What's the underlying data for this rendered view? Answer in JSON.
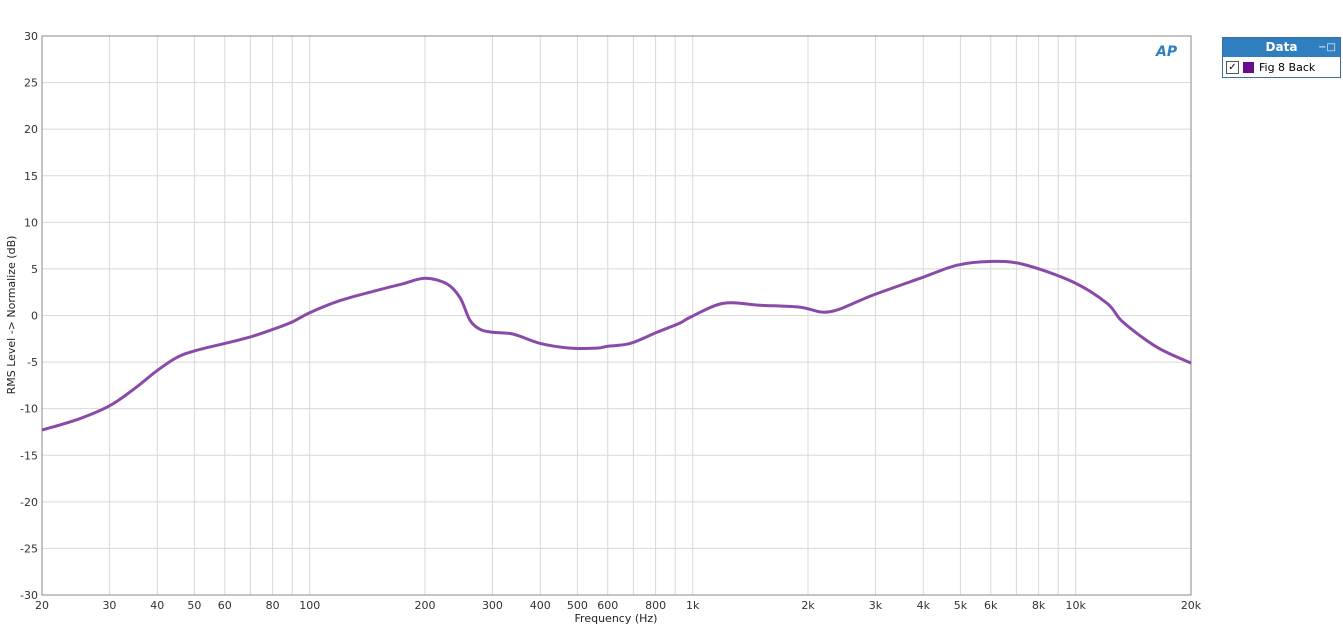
{
  "chart_data": {
    "type": "line",
    "title": "",
    "xlabel": "Frequency (Hz)",
    "ylabel": "RMS Level -> Normalize (dB)",
    "xscale": "log",
    "xlim": [
      20,
      20000
    ],
    "ylim": [
      -30,
      30
    ],
    "grid": true,
    "x_ticks": [
      20,
      30,
      40,
      50,
      60,
      80,
      100,
      200,
      300,
      400,
      500,
      600,
      800,
      1000,
      2000,
      3000,
      4000,
      5000,
      6000,
      8000,
      10000,
      20000
    ],
    "x_tick_labels": [
      "20",
      "30",
      "40",
      "50",
      "60",
      "80",
      "100",
      "200",
      "300",
      "400",
      "500",
      "600",
      "800",
      "1k",
      "2k",
      "3k",
      "4k",
      "5k",
      "6k",
      "8k",
      "10k",
      "20k"
    ],
    "y_ticks": [
      -30,
      -25,
      -20,
      -15,
      -10,
      -5,
      0,
      5,
      10,
      15,
      20,
      25,
      30
    ],
    "legend_placement": "right",
    "series": [
      {
        "name": "Fig 8 Back",
        "color": "#8a4aa8",
        "x": [
          20,
          25,
          30,
          35,
          40,
          45,
          50,
          60,
          70,
          80,
          90,
          100,
          120,
          150,
          175,
          200,
          228,
          247,
          262,
          279,
          300,
          340,
          400,
          478,
          562,
          600,
          686,
          807,
          927,
          984,
          1200,
          1500,
          1900,
          2280,
          2960,
          3990,
          4900,
          5970,
          7280,
          9840,
          12080,
          13280,
          16300,
          20000
        ],
        "y": [
          -12.3,
          -11.1,
          -9.7,
          -7.8,
          -5.9,
          -4.5,
          -3.8,
          -3.0,
          -2.3,
          -1.5,
          -0.7,
          0.3,
          1.6,
          2.7,
          3.4,
          4.0,
          3.4,
          1.9,
          -0.5,
          -1.5,
          -1.8,
          -2.0,
          -3.0,
          -3.5,
          -3.5,
          -3.3,
          -3.0,
          -1.8,
          -0.8,
          -0.2,
          1.3,
          1.1,
          0.9,
          0.4,
          2.2,
          4.1,
          5.4,
          5.8,
          5.5,
          3.6,
          1.3,
          -0.7,
          -3.4,
          -5.1
        ]
      }
    ]
  },
  "legend": {
    "title": "Data",
    "items": [
      {
        "label": "Fig 8 Back",
        "checked": true,
        "swatch": "#6a0d8a"
      }
    ]
  },
  "logo": "AP"
}
